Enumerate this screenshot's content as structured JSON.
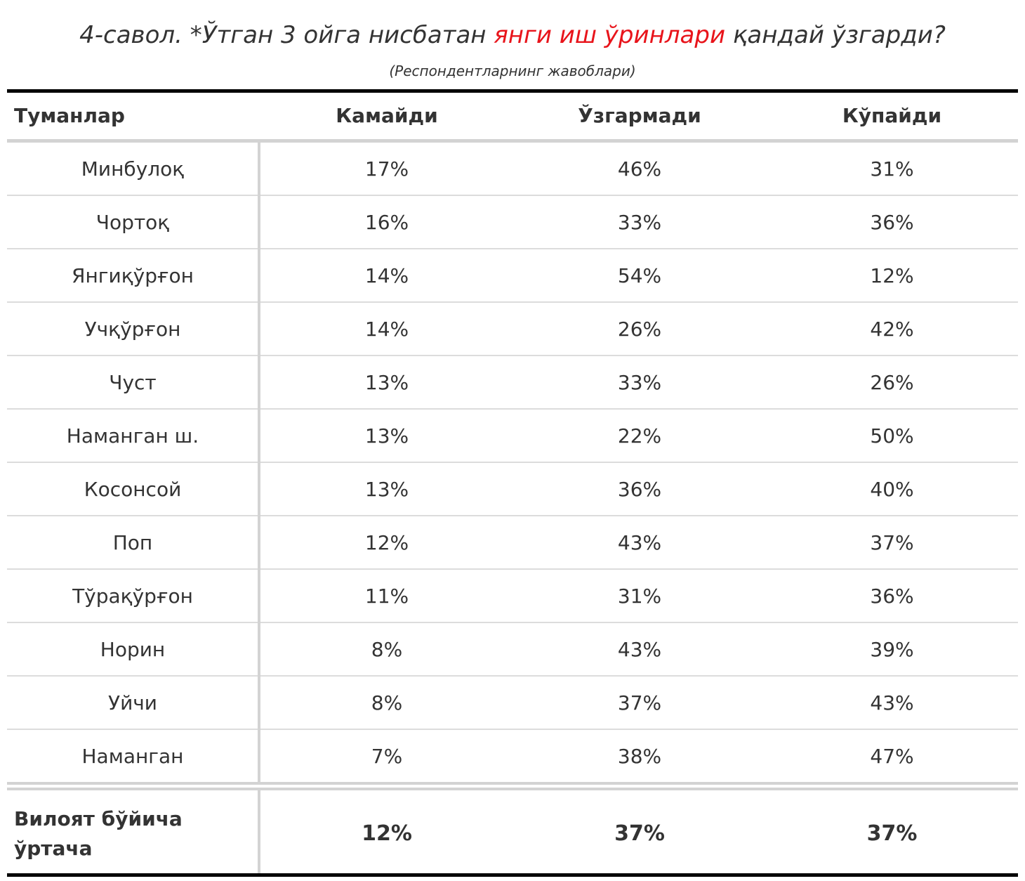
{
  "title": {
    "prefix": "4-савол. *Ўтган 3 ойга нисбатан ",
    "highlight": "янги иш ўринлари",
    "suffix": " қандай ўзгарди?",
    "highlight_color": "#e8141b"
  },
  "subtitle": "(Респондентларнинг жавоблари)",
  "columns": [
    "Туманлар",
    "Камайди",
    "Ўзгармади",
    "Кўпайди"
  ],
  "rows": [
    {
      "district": "Минбулоқ",
      "decreased": "17%",
      "unchanged": "46%",
      "increased": "31%"
    },
    {
      "district": "Чортоқ",
      "decreased": "16%",
      "unchanged": "33%",
      "increased": "36%"
    },
    {
      "district": "Янгиқўрғон",
      "decreased": "14%",
      "unchanged": "54%",
      "increased": "12%"
    },
    {
      "district": "Учқўрғон",
      "decreased": "14%",
      "unchanged": "26%",
      "increased": "42%"
    },
    {
      "district": "Чуст",
      "decreased": "13%",
      "unchanged": "33%",
      "increased": "26%"
    },
    {
      "district": "Наманган ш.",
      "decreased": "13%",
      "unchanged": "22%",
      "increased": "50%"
    },
    {
      "district": "Косонсой",
      "decreased": "13%",
      "unchanged": "36%",
      "increased": "40%"
    },
    {
      "district": "Поп",
      "decreased": "12%",
      "unchanged": "43%",
      "increased": "37%"
    },
    {
      "district": "Тўрақўрғон",
      "decreased": "11%",
      "unchanged": "31%",
      "increased": "36%"
    },
    {
      "district": "Норин",
      "decreased": "8%",
      "unchanged": "43%",
      "increased": "39%"
    },
    {
      "district": "Уйчи",
      "decreased": "8%",
      "unchanged": "37%",
      "increased": "43%"
    },
    {
      "district": "Наманган",
      "decreased": "7%",
      "unchanged": "38%",
      "increased": "47%"
    }
  ],
  "total": {
    "label": "Вилоят бўйича ўртача",
    "decreased": "12%",
    "unchanged": "37%",
    "increased": "37%"
  },
  "chart_data": {
    "type": "table",
    "title": "4-савол. *Ўтган 3 ойга нисбатан янги иш ўринлари қандай ўзгарди?",
    "subtitle": "(Респондентларнинг жавоблари)",
    "columns": [
      "Туманлар",
      "Камайди",
      "Ўзгармади",
      "Кўпайди"
    ],
    "categories": [
      "Минбулоқ",
      "Чортоқ",
      "Янгиқўрғон",
      "Учқўрғон",
      "Чуст",
      "Наманган ш.",
      "Косонсой",
      "Поп",
      "Тўрақўрғон",
      "Норин",
      "Уйчи",
      "Наманган",
      "Вилоят бўйича ўртача"
    ],
    "series": [
      {
        "name": "Камайди",
        "values": [
          17,
          16,
          14,
          14,
          13,
          13,
          13,
          12,
          11,
          8,
          8,
          7,
          12
        ]
      },
      {
        "name": "Ўзгармади",
        "values": [
          46,
          33,
          54,
          26,
          33,
          22,
          36,
          43,
          31,
          43,
          37,
          38,
          37
        ]
      },
      {
        "name": "Кўпайди",
        "values": [
          31,
          36,
          12,
          42,
          26,
          50,
          40,
          37,
          36,
          39,
          43,
          47,
          37
        ]
      }
    ],
    "unit": "%"
  }
}
